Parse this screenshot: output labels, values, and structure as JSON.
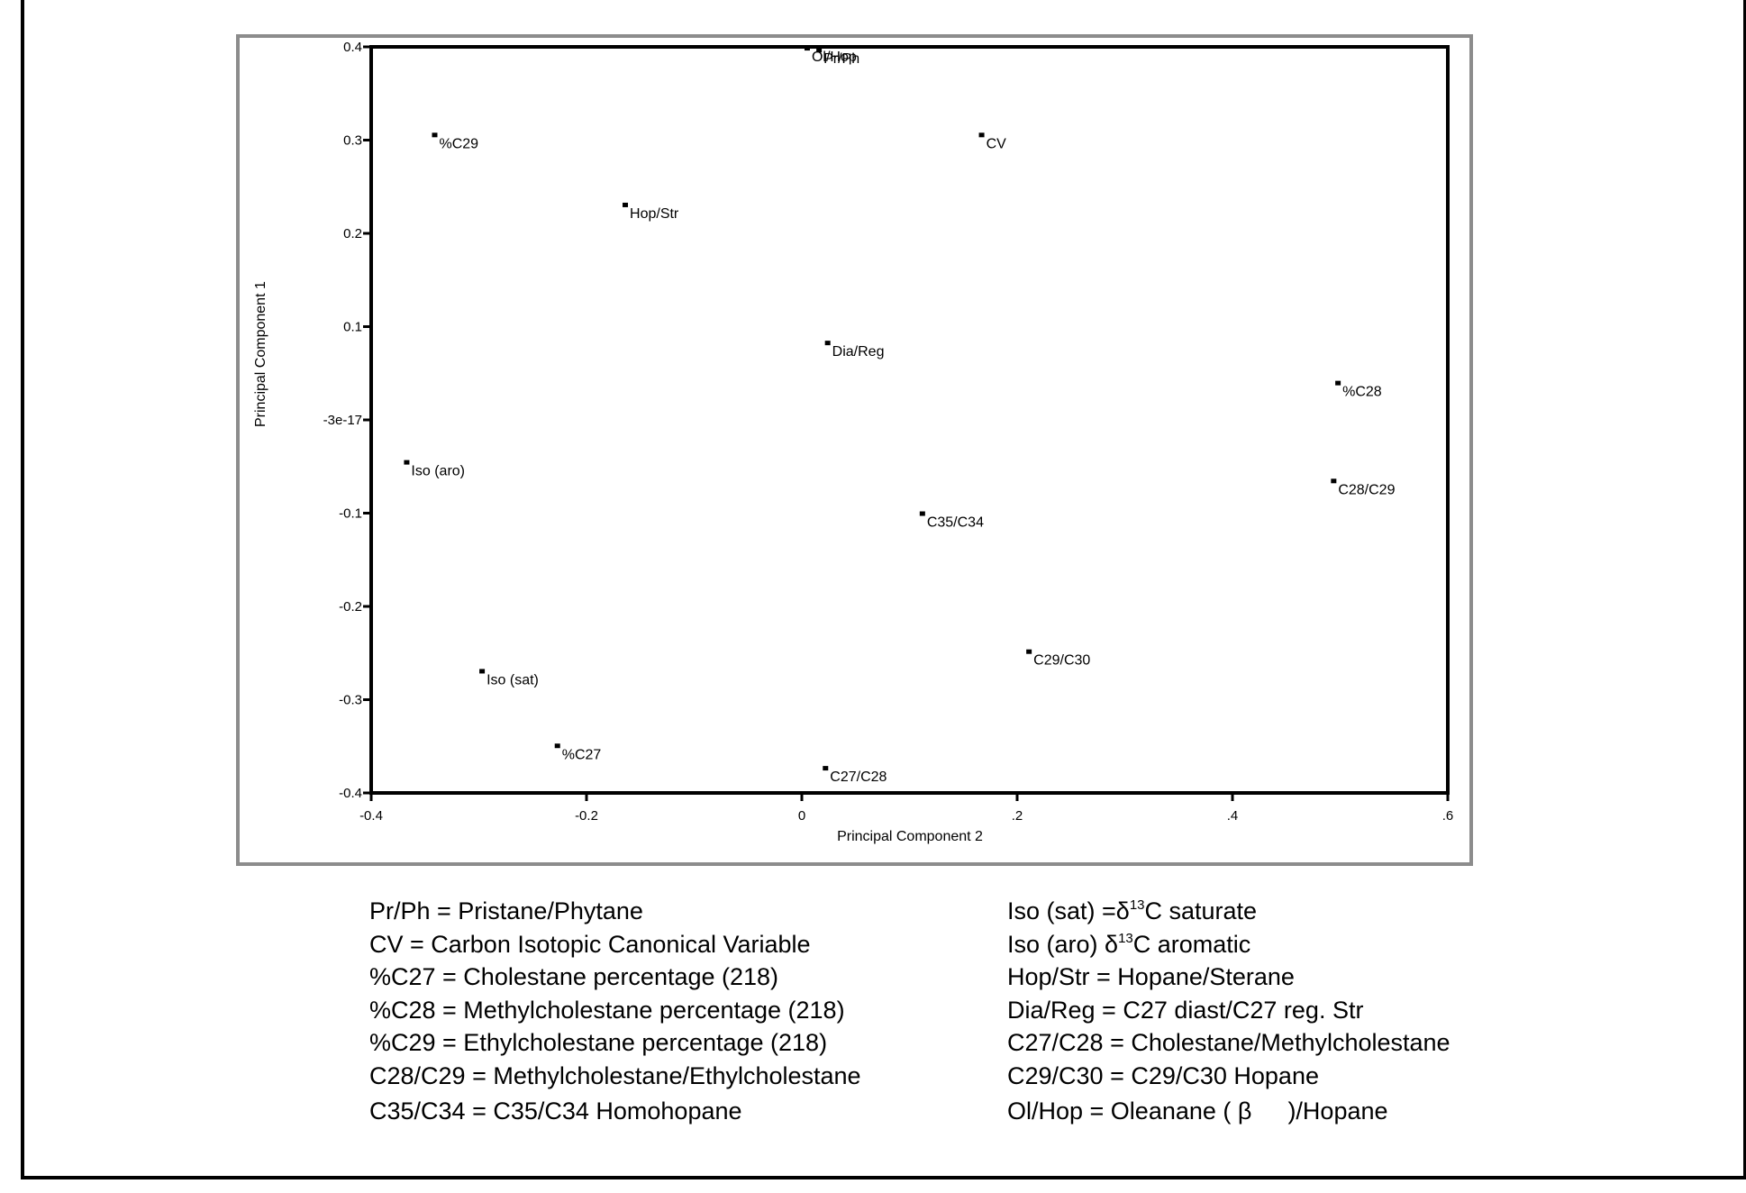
{
  "chart_data": {
    "type": "scatter",
    "title": "",
    "xlabel": "Principal Component 2",
    "ylabel": "Principal Component 1",
    "xlim": [
      -0.4,
      0.6
    ],
    "ylim": [
      -0.4,
      0.4
    ],
    "x_ticks": [
      "-0.4",
      "-0.2",
      "0",
      ".2",
      ".4",
      ".6"
    ],
    "x_tick_values": [
      -0.4,
      -0.2,
      0,
      0.2,
      0.4,
      0.6
    ],
    "y_ticks": [
      "0.4",
      "0.3",
      "0.2",
      "0.1",
      "-3e-17",
      "-0.1",
      "-0.2",
      "-0.3",
      "-0.4"
    ],
    "y_tick_values": [
      0.4,
      0.3,
      0.2,
      0.1,
      0,
      -0.1,
      -0.2,
      -0.3,
      -0.4
    ],
    "grid": false,
    "points": [
      {
        "label": "Pr/Ph",
        "x": 0.016,
        "y": 0.396
      },
      {
        "label": "Ol/Hop",
        "x": 0.005,
        "y": 0.398
      },
      {
        "label": "%C29",
        "x": -0.341,
        "y": 0.305
      },
      {
        "label": "CV",
        "x": 0.167,
        "y": 0.305
      },
      {
        "label": "Hop/Str",
        "x": -0.164,
        "y": 0.23
      },
      {
        "label": "Dia/Reg",
        "x": 0.024,
        "y": 0.082
      },
      {
        "label": "%C28",
        "x": 0.498,
        "y": 0.039
      },
      {
        "label": "Iso (aro)",
        "x": -0.367,
        "y": -0.046
      },
      {
        "label": "C28/C29",
        "x": 0.494,
        "y": -0.066
      },
      {
        "label": "C35/C34",
        "x": 0.112,
        "y": -0.101
      },
      {
        "label": "C29/C30",
        "x": 0.211,
        "y": -0.249
      },
      {
        "label": "Iso (sat)",
        "x": -0.297,
        "y": -0.27
      },
      {
        "label": "%C27",
        "x": -0.227,
        "y": -0.35
      },
      {
        "label": "C27/C28",
        "x": 0.022,
        "y": -0.374
      }
    ],
    "legend": [
      "Pr/Ph = Pristane/Phytane",
      "CV = Carbon Isotopic Canonical Variable",
      "%C27 = Cholestane percentage (218)",
      "%C28 = Methylcholestane percentage (218)",
      "%C29 = Ethylcholestane percentage (218)",
      "C28/C29 = Methylcholestane/Ethylcholestane",
      "C35/C34 = C35/C34 Homohopane",
      "Iso (sat) =δ13C saturate",
      "Iso (aro) δ13C aromatic",
      "Hop/Str = Hopane/Sterane",
      "Dia/Reg = C27 diast/C27 reg. Str",
      "C27/C28 = Cholestane/Methylcholestane",
      "C29/C30 = C29/C30 Hopane",
      "Ol/Hop = Oleanane ( β )/Hopane"
    ]
  },
  "axes": {
    "xlabel": "Principal Component 2",
    "ylabel": "Principal Component 1"
  },
  "legend": {
    "left": [
      {
        "text": "Pr/Ph = Pristane/Phytane"
      },
      {
        "text": "CV = Carbon Isotopic Canonical Variable"
      },
      {
        "text": "%C27 = Cholestane percentage (218)"
      },
      {
        "text": "%C28 = Methylcholestane percentage (218)"
      },
      {
        "text": "%C29 = Ethylcholestane percentage (218)"
      },
      {
        "text": "C28/C29 = Methylcholestane/Ethylcholestane"
      },
      {
        "text": "C35/C34 = C35/C34 Homohopane"
      }
    ],
    "right": [
      {
        "pre": "Iso (sat) =δ",
        "sup": "13",
        "post": "C saturate"
      },
      {
        "pre": "Iso (aro) δ",
        "sup": "13",
        "post": "C aromatic"
      },
      {
        "text": "Hop/Str = Hopane/Sterane"
      },
      {
        "text": "Dia/Reg = C27 diast/C27 reg. Str"
      },
      {
        "text": "C27/C28 = Cholestane/Methylcholestane"
      },
      {
        "text": "C29/C30 = C29/C30 Hopane"
      },
      {
        "pre": "Ol/Hop = Oleanane ( β",
        "post": ")/Hopane"
      }
    ]
  },
  "colors": {
    "axis": "#000000",
    "frame_gray": "#8c8c8c",
    "marker": "#000000"
  }
}
